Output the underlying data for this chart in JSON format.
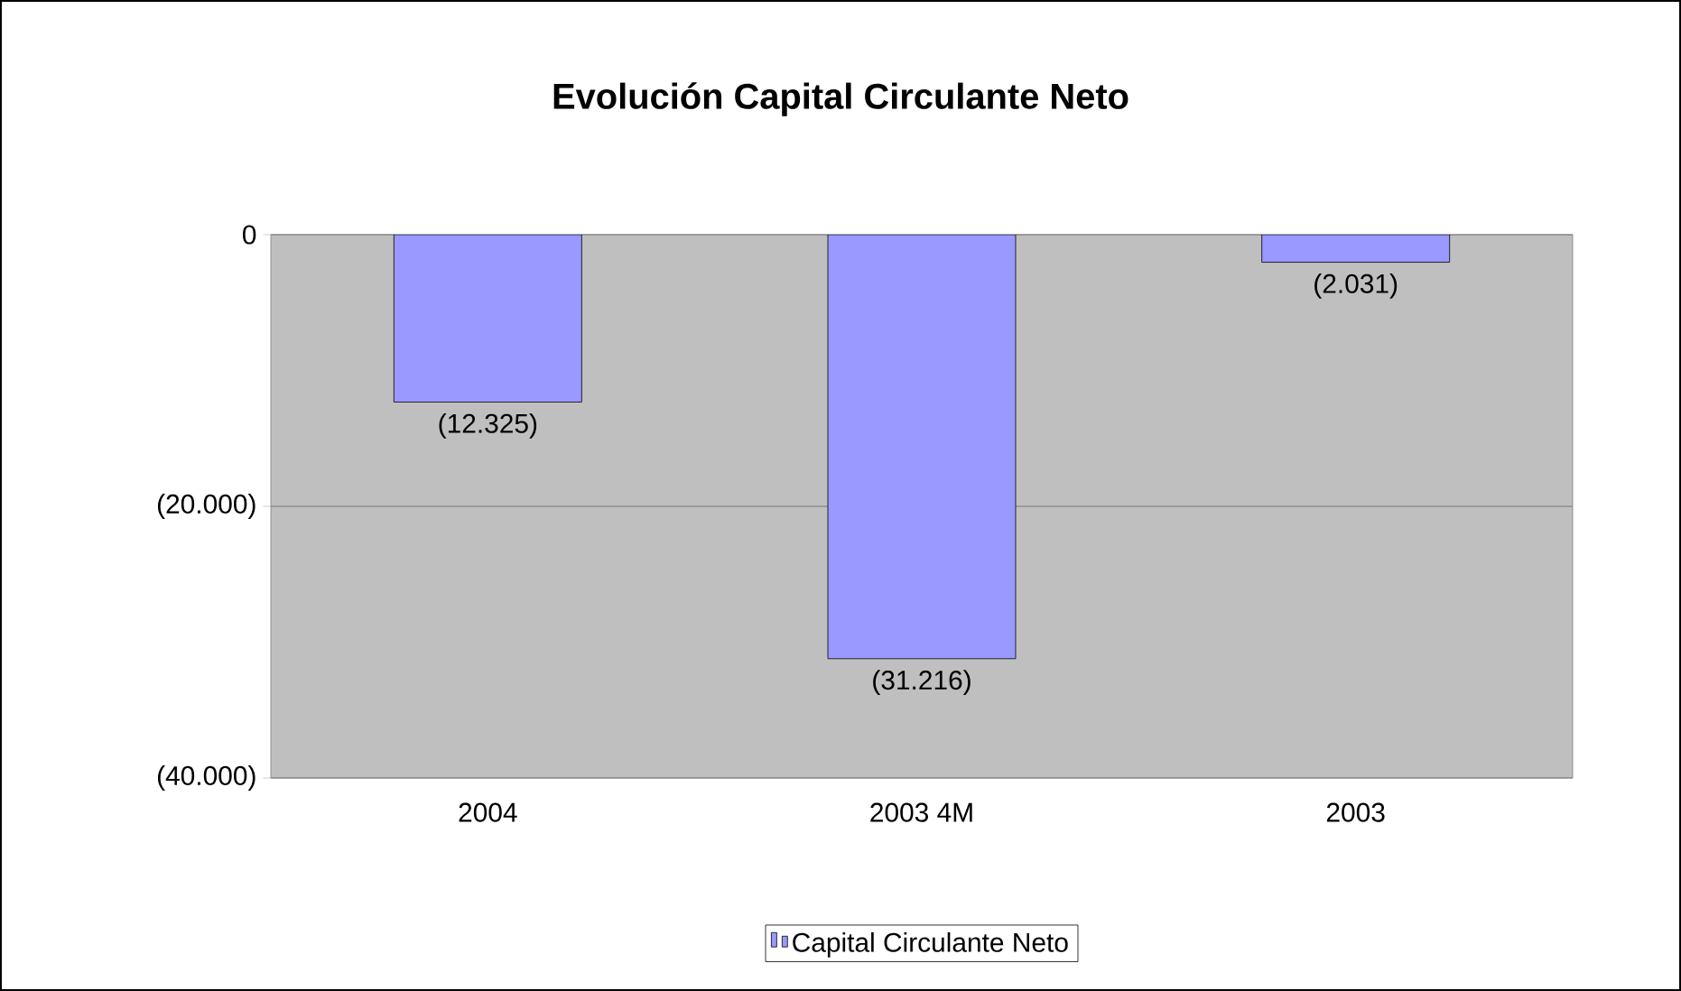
{
  "chart_data": {
    "type": "bar",
    "title": "Evolución Capital Circulante Neto",
    "categories": [
      "2004",
      "2003 4M",
      "2003"
    ],
    "series": [
      {
        "name": "Capital Circulante Neto",
        "color": "#9999ff",
        "values": [
          -12325,
          -31216,
          -2031
        ],
        "value_labels": [
          "(12.325)",
          "(31.216)",
          "(2.031)"
        ]
      }
    ],
    "ylim": [
      -40000,
      0
    ],
    "yticks": [
      {
        "value": -40000,
        "label": "(40.000)"
      },
      {
        "value": -20000,
        "label": "(20.000)"
      },
      0
    ],
    "grid": "y",
    "legend": "bottom"
  }
}
